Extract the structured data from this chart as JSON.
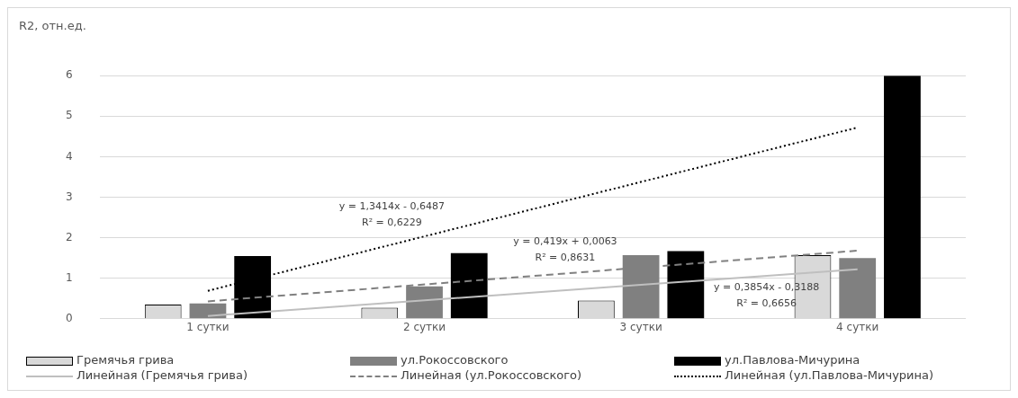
{
  "chart_data": {
    "type": "bar",
    "ylabel": "R2, отн.ед.",
    "categories": [
      "1 сутки",
      "2 сутки",
      "3 сутки",
      "4 сутки"
    ],
    "series": [
      {
        "name": "Гремячья грива",
        "color": "#d9d9d9",
        "values": [
          0.35,
          0.27,
          0.45,
          1.57
        ]
      },
      {
        "name": "ул.Рокоссовского",
        "color": "#808080",
        "values": [
          0.38,
          0.8,
          1.57,
          1.5
        ]
      },
      {
        "name": "ул.Павлова-Мичурина",
        "color": "#000000",
        "values": [
          1.55,
          1.62,
          1.67,
          6.0
        ]
      },
      {
        "name": "Линейная (Гремячья грива)",
        "type": "line",
        "color": "#bfbfbf",
        "line_style": "solid",
        "x": [
          "1 сутки",
          "4 сутки"
        ],
        "values": [
          0.07,
          1.22
        ]
      },
      {
        "name": "Линейная (ул.Рокоссовского)",
        "type": "line",
        "color": "#808080",
        "line_style": "dashed",
        "x": [
          "1 сутки",
          "4 сутки"
        ],
        "values": [
          0.43,
          1.68
        ]
      },
      {
        "name": "Линейная (ул.Павлова-Мичурина)",
        "type": "line",
        "color": "#000000",
        "line_style": "dotted",
        "x": [
          "1 сутки",
          "4 сутки"
        ],
        "values": [
          0.69,
          4.72
        ]
      }
    ],
    "ylim": [
      0,
      6
    ],
    "yticks": [
      0,
      1,
      2,
      3,
      4,
      5,
      6
    ],
    "grid": "y",
    "legend": "bottom",
    "marker": "none",
    "annotations": [
      "y = 1,3414x - 0,6487\nR² = 0,6229",
      "y = 0,419x + 0,0063\nR² = 0,8631",
      "y = 0,3854x - 0,3188\nR² = 0,6656"
    ]
  }
}
